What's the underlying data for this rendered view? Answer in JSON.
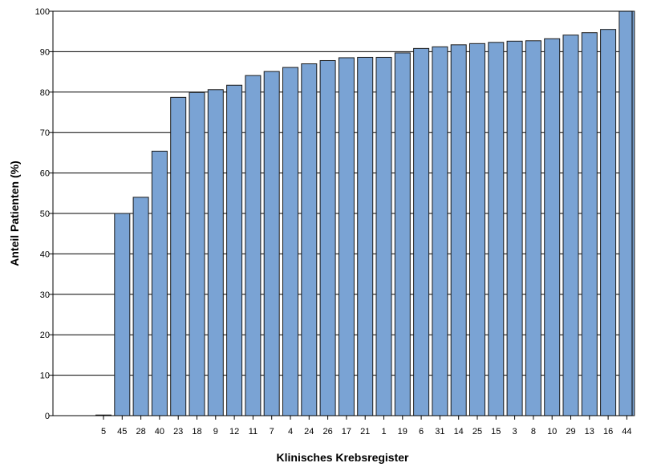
{
  "chart_data": {
    "type": "bar",
    "title": "",
    "xlabel": "Klinisches Krebsregister",
    "ylabel": "Anteil Patienten (%)",
    "ylim": [
      0,
      100
    ],
    "yticks": [
      0,
      10,
      20,
      30,
      40,
      50,
      60,
      70,
      80,
      90,
      100
    ],
    "grid": true,
    "categories": [
      "5",
      "45",
      "28",
      "40",
      "23",
      "18",
      "9",
      "12",
      "11",
      "7",
      "4",
      "24",
      "26",
      "17",
      "21",
      "1",
      "19",
      "6",
      "31",
      "14",
      "25",
      "15",
      "3",
      "8",
      "10",
      "29",
      "13",
      "16",
      "44"
    ],
    "values": [
      0,
      50,
      54,
      65.4,
      78.7,
      79.9,
      80.6,
      81.7,
      84.1,
      85.1,
      86.1,
      87.0,
      87.8,
      88.5,
      88.6,
      88.6,
      89.7,
      90.8,
      91.2,
      91.7,
      92.0,
      92.3,
      92.6,
      92.7,
      93.2,
      94.1,
      94.7,
      95.5,
      100
    ],
    "colors": {
      "bar_fill": "#7aa3d4",
      "bar_stroke": "#1a1a1a",
      "grid": "#000000",
      "frame": "#000000"
    }
  }
}
